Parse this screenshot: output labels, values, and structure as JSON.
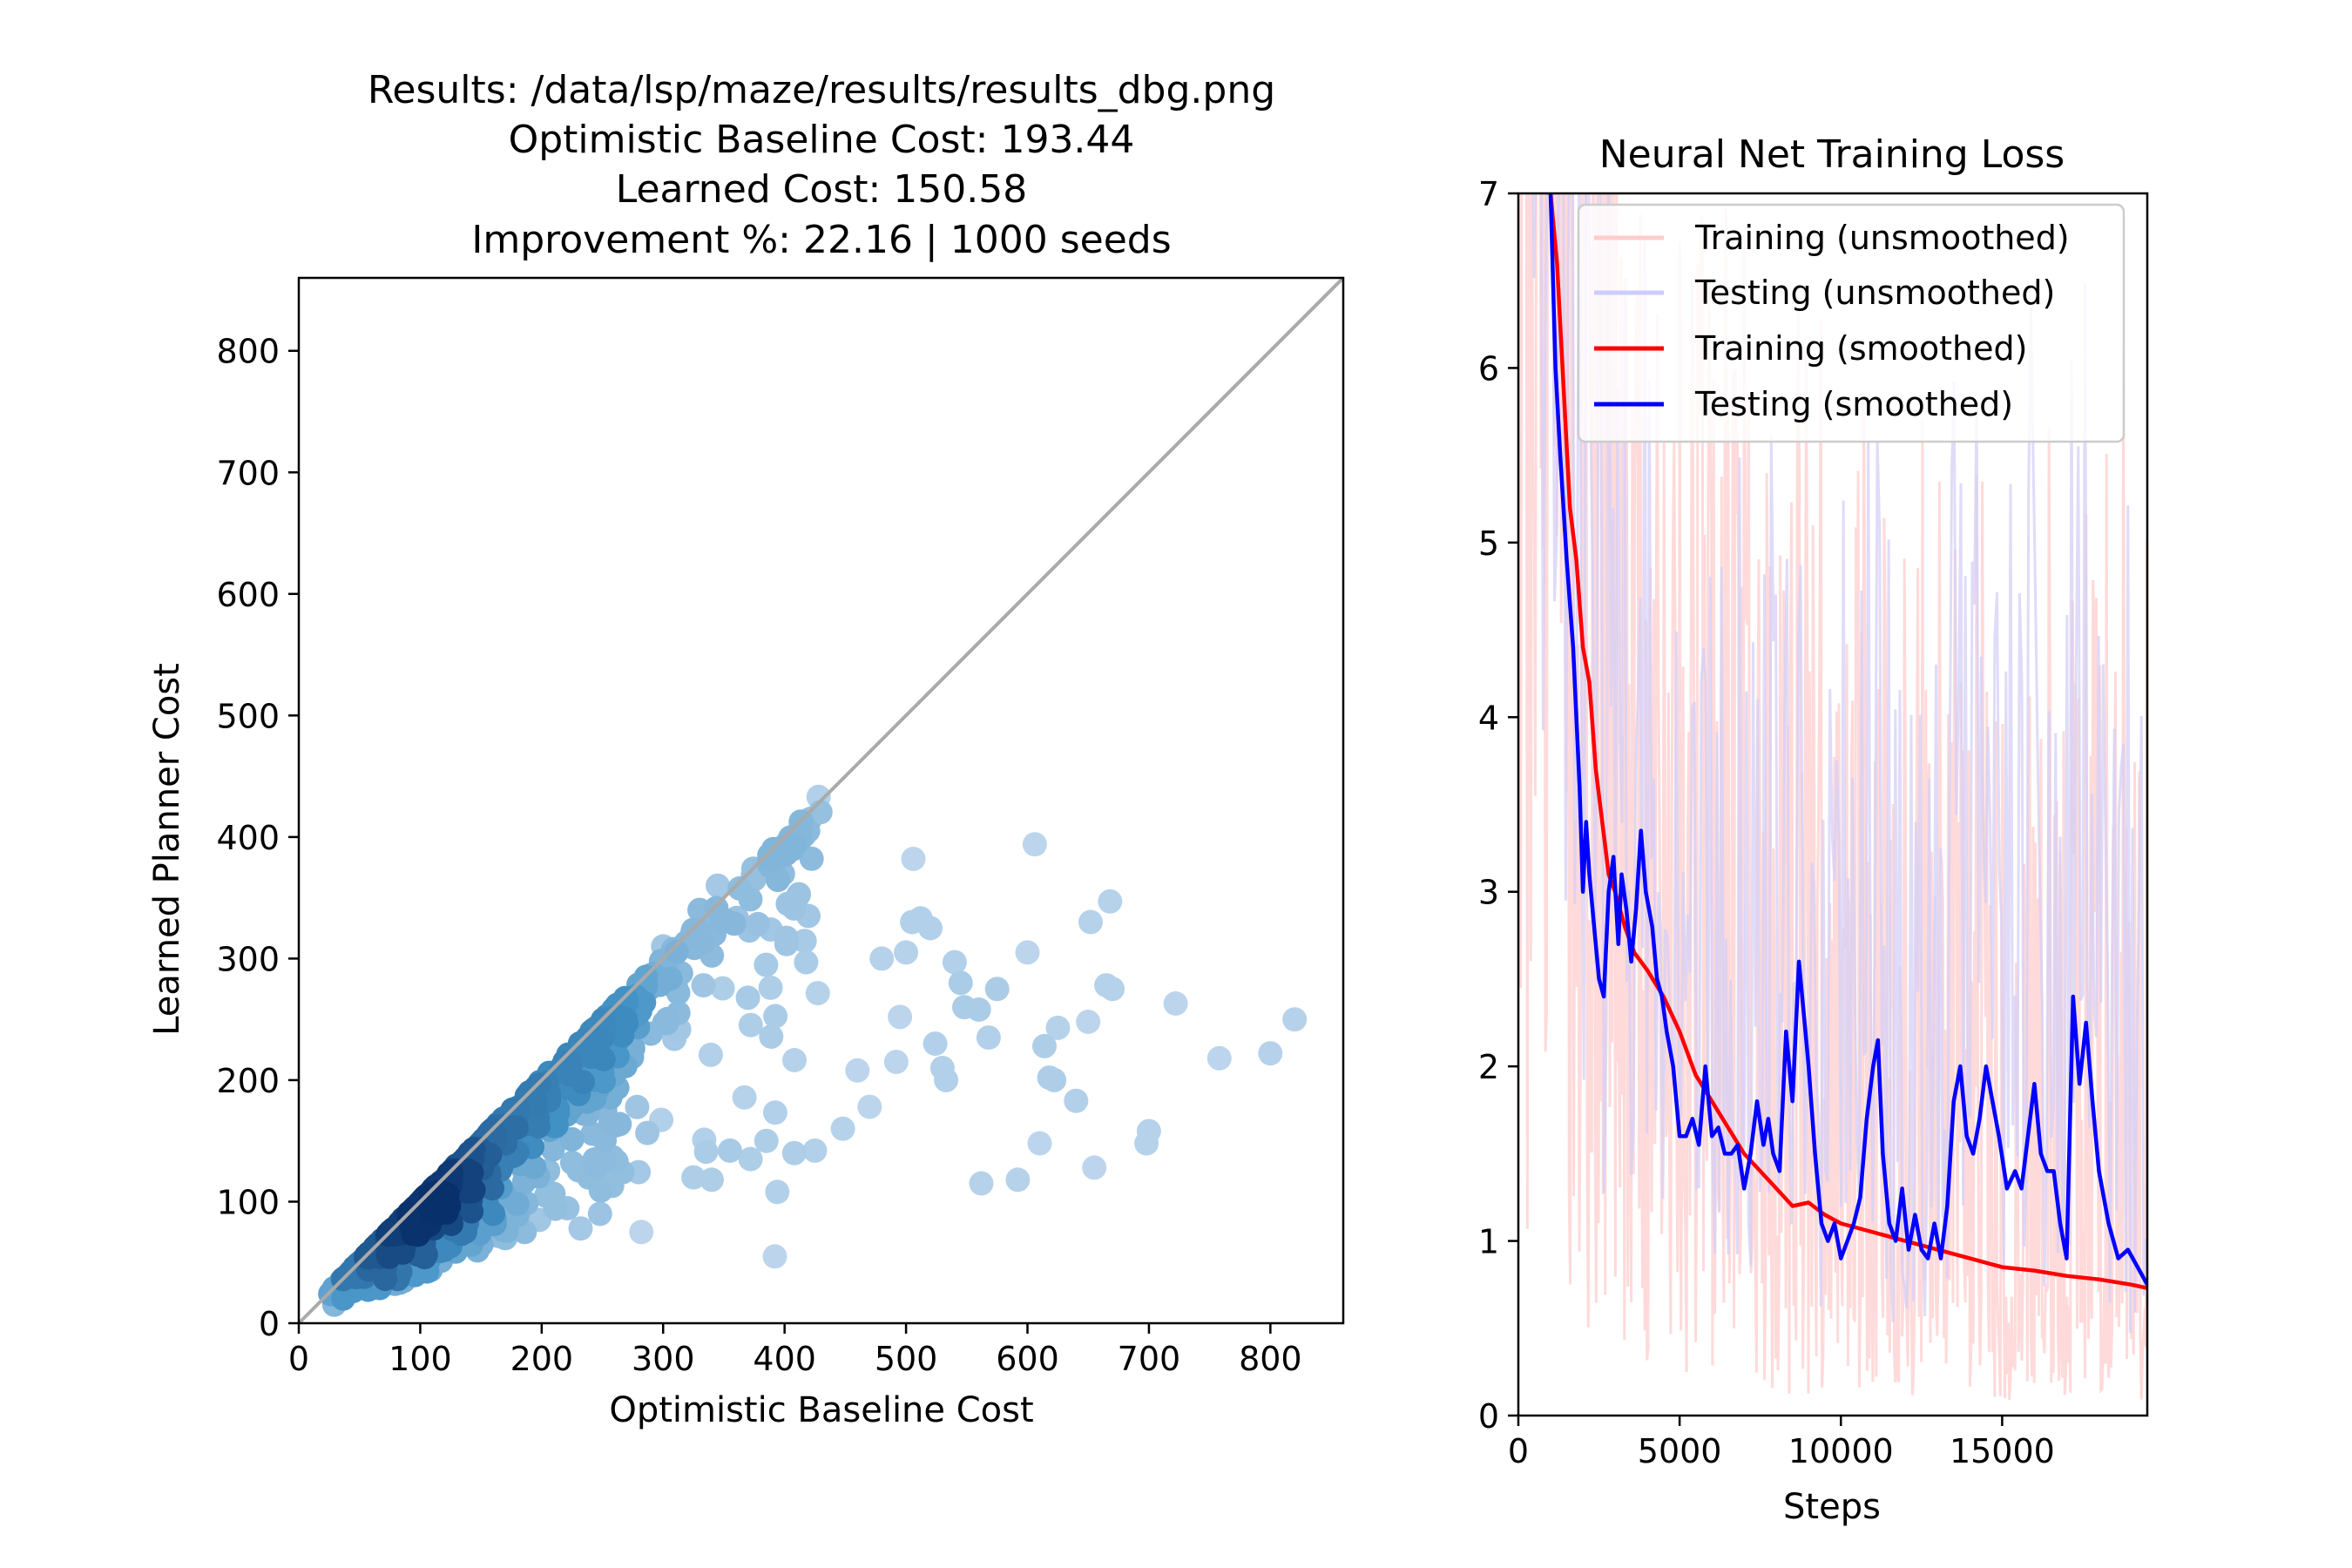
{
  "chart_data": [
    {
      "type": "scatter",
      "title_lines": [
        "Results: /data/lsp/maze/results/results_dbg.png",
        "Optimistic Baseline Cost: 193.44",
        "Learned Cost: 150.58",
        "Improvement %: 22.16 | 1000 seeds"
      ],
      "xlabel": "Optimistic Baseline Cost",
      "ylabel": "Learned Planner Cost",
      "xlim": [
        0,
        860
      ],
      "ylim": [
        0,
        860
      ],
      "xticks": [
        0,
        100,
        200,
        300,
        400,
        500,
        600,
        700,
        800
      ],
      "yticks": [
        0,
        100,
        200,
        300,
        400,
        500,
        600,
        700,
        800
      ],
      "reference_line": "y = x",
      "colormap": "Blues",
      "point_count": 1000,
      "outlier_points": [
        [
          820,
          250
        ],
        [
          800,
          222
        ],
        [
          758,
          218
        ],
        [
          722,
          263
        ],
        [
          700,
          158
        ],
        [
          698,
          148
        ],
        [
          670,
          275
        ],
        [
          665,
          278
        ],
        [
          668,
          347
        ],
        [
          652,
          330
        ],
        [
          650,
          248
        ],
        [
          655,
          128
        ],
        [
          640,
          183
        ],
        [
          625,
          243
        ],
        [
          622,
          200
        ],
        [
          618,
          202
        ],
        [
          614,
          228
        ],
        [
          610,
          148
        ],
        [
          606,
          394
        ],
        [
          600,
          305
        ],
        [
          592,
          118
        ],
        [
          562,
          115
        ],
        [
          575,
          275
        ],
        [
          568,
          235
        ],
        [
          560,
          258
        ],
        [
          548,
          260
        ],
        [
          545,
          280
        ],
        [
          540,
          297
        ],
        [
          533,
          200
        ],
        [
          530,
          210
        ],
        [
          524,
          230
        ],
        [
          520,
          325
        ],
        [
          512,
          333
        ],
        [
          506,
          382
        ],
        [
          505,
          330
        ],
        [
          500,
          305
        ],
        [
          495,
          252
        ],
        [
          492,
          215
        ],
        [
          480,
          300
        ],
        [
          470,
          178
        ],
        [
          460,
          208
        ],
        [
          448,
          160
        ],
        [
          428,
          433
        ],
        [
          425,
          142
        ],
        [
          412,
          400
        ],
        [
          408,
          140
        ],
        [
          394,
          108
        ],
        [
          392,
          55
        ],
        [
          385,
          150
        ],
        [
          372,
          135
        ],
        [
          355,
          142
        ],
        [
          340,
          118
        ],
        [
          325,
          120
        ],
        [
          282,
          75
        ],
        [
          258,
          113
        ],
        [
          248,
          90
        ],
        [
          232,
          78
        ],
        [
          198,
          85
        ],
        [
          186,
          75
        ],
        [
          170,
          70
        ],
        [
          160,
          90
        ],
        [
          345,
          360
        ],
        [
          330,
          340
        ],
        [
          300,
          310
        ]
      ]
    },
    {
      "type": "line",
      "title": "Neural Net Training Loss",
      "xlabel": "Steps",
      "ylabel": "",
      "xlim": [
        0,
        19500
      ],
      "ylim": [
        0,
        7
      ],
      "xticks": [
        0,
        5000,
        10000,
        15000
      ],
      "yticks": [
        0,
        1,
        2,
        3,
        4,
        5,
        6,
        7
      ],
      "legend": {
        "placement": "top-right",
        "entries": [
          "Training (unsmoothed)",
          "Testing (unsmoothed)",
          "Training (smoothed)",
          "Testing (smoothed)"
        ]
      },
      "series": [
        {
          "name": "Training (smoothed)",
          "color": "#ff0000",
          "x": [
            1000,
            1200,
            1400,
            1600,
            1800,
            2000,
            2200,
            2400,
            2600,
            2800,
            3000,
            3300,
            3600,
            4000,
            4500,
            5000,
            5500,
            6000,
            6500,
            7000,
            7500,
            8000,
            8500,
            9000,
            9500,
            10000,
            11000,
            12000,
            13000,
            14000,
            15000,
            16000,
            17000,
            18000,
            19000,
            19500
          ],
          "y": [
            7.0,
            6.6,
            5.9,
            5.2,
            4.9,
            4.4,
            4.2,
            3.7,
            3.4,
            3.1,
            3.0,
            2.8,
            2.65,
            2.55,
            2.4,
            2.2,
            1.95,
            1.8,
            1.65,
            1.5,
            1.4,
            1.3,
            1.2,
            1.22,
            1.15,
            1.1,
            1.05,
            1.0,
            0.95,
            0.9,
            0.85,
            0.83,
            0.8,
            0.78,
            0.75,
            0.73
          ]
        },
        {
          "name": "Testing (smoothed)",
          "color": "#0000ff",
          "x": [
            1000,
            1150,
            1300,
            1500,
            1700,
            1900,
            2000,
            2100,
            2200,
            2350,
            2500,
            2650,
            2800,
            2950,
            3100,
            3200,
            3350,
            3500,
            3650,
            3800,
            3950,
            4150,
            4300,
            4450,
            4600,
            4800,
            5000,
            5200,
            5400,
            5600,
            5800,
            6000,
            6200,
            6400,
            6600,
            6800,
            7000,
            7200,
            7400,
            7600,
            7750,
            7900,
            8100,
            8300,
            8500,
            8700,
            8850,
            9000,
            9200,
            9400,
            9600,
            9800,
            10000,
            10200,
            10400,
            10600,
            10800,
            11000,
            11150,
            11300,
            11500,
            11700,
            11900,
            12100,
            12300,
            12500,
            12700,
            12900,
            13100,
            13300,
            13500,
            13700,
            13900,
            14100,
            14300,
            14500,
            14700,
            14900,
            15150,
            15400,
            15600,
            15800,
            16000,
            16200,
            16400,
            16600,
            16800,
            17000,
            17200,
            17400,
            17600,
            17800,
            18000,
            18300,
            18600,
            18900,
            19200,
            19500
          ],
          "y": [
            7.0,
            6.0,
            5.5,
            4.9,
            4.4,
            3.6,
            3.0,
            3.4,
            3.1,
            2.8,
            2.5,
            2.4,
            3.0,
            3.2,
            2.7,
            3.1,
            2.9,
            2.6,
            2.9,
            3.35,
            3.0,
            2.8,
            2.5,
            2.4,
            2.2,
            2.0,
            1.6,
            1.6,
            1.7,
            1.55,
            2.0,
            1.6,
            1.65,
            1.5,
            1.5,
            1.55,
            1.3,
            1.5,
            1.8,
            1.55,
            1.7,
            1.5,
            1.4,
            2.2,
            1.8,
            2.6,
            2.3,
            2.0,
            1.5,
            1.1,
            1.0,
            1.1,
            0.9,
            1.0,
            1.1,
            1.25,
            1.7,
            2.0,
            2.15,
            1.5,
            1.1,
            1.0,
            1.3,
            0.95,
            1.15,
            0.95,
            0.9,
            1.1,
            0.9,
            1.2,
            1.8,
            2.0,
            1.6,
            1.5,
            1.7,
            2.0,
            1.8,
            1.6,
            1.3,
            1.4,
            1.3,
            1.6,
            1.9,
            1.5,
            1.4,
            1.4,
            1.1,
            0.9,
            2.4,
            1.9,
            2.25,
            1.8,
            1.4,
            1.1,
            0.9,
            0.95,
            0.85,
            0.75
          ]
        },
        {
          "name": "Training (unsmoothed)",
          "color": "#ffcccc",
          "band": "noisy, spans roughly 0.1 to 7 across all steps"
        },
        {
          "name": "Testing (unsmoothed)",
          "color": "#ccccff",
          "band": "noisy, spans roughly 0.3 to 7 across all steps"
        }
      ]
    }
  ],
  "colors": {
    "scatter_light": "#c6dbef",
    "scatter_mid": "#4292c6",
    "scatter_dark": "#08306b",
    "reference_line": "#aaaaaa"
  }
}
